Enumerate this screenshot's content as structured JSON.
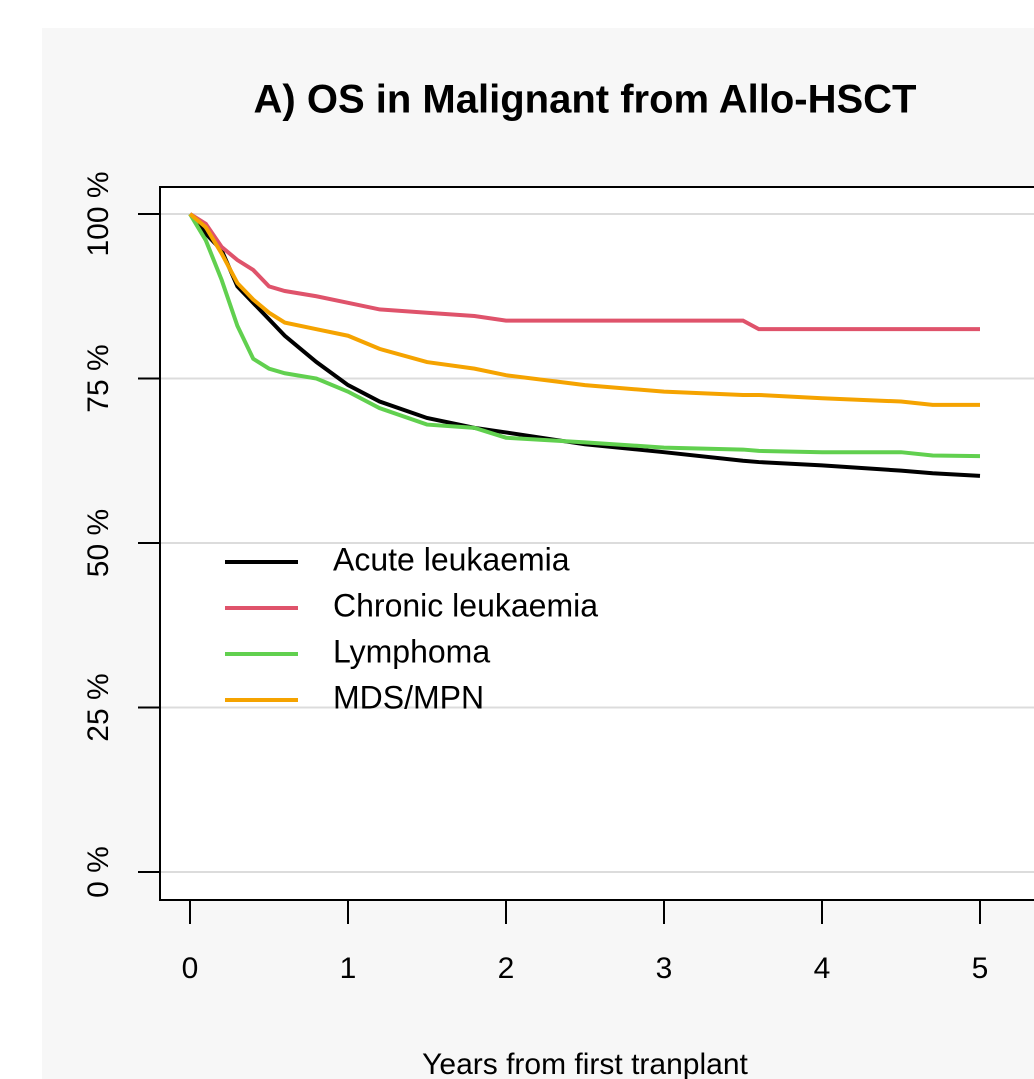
{
  "chart_data": {
    "type": "line",
    "title": "A) OS in Malignant from Allo-HSCT",
    "x_label": "Years from first tranplant",
    "x": [
      0,
      0.1,
      0.2,
      0.3,
      0.4,
      0.5,
      0.6,
      0.8,
      1.0,
      1.2,
      1.5,
      1.8,
      2.0,
      2.5,
      3.0,
      3.5,
      3.6,
      4.0,
      4.5,
      4.7,
      5.0
    ],
    "series": [
      {
        "name": "Acute leukaemia",
        "color": "#000000",
        "values": [
          100,
          97,
          94.5,
          89,
          86.5,
          84,
          81.5,
          77.5,
          74,
          71.5,
          69,
          67.5,
          66.8,
          65,
          63.8,
          62.5,
          62.3,
          61.8,
          61,
          60.6,
          60.2
        ]
      },
      {
        "name": "Chronic leukaemia",
        "color": "#df536b",
        "values": [
          100,
          98.5,
          95,
          93,
          91.5,
          89,
          88.3,
          87.5,
          86.5,
          85.5,
          85,
          84.5,
          83.8,
          83.8,
          83.8,
          83.8,
          82.5,
          82.5,
          82.5,
          82.5,
          82.5
        ]
      },
      {
        "name": "Lymphoma",
        "color": "#61d04f",
        "values": [
          100,
          96,
          90,
          83,
          78,
          76.5,
          75.8,
          75,
          73,
          70.5,
          68,
          67.5,
          66,
          65.3,
          64.5,
          64.2,
          64,
          63.8,
          63.8,
          63.3,
          63.2
        ]
      },
      {
        "name": "MDS/MPN",
        "color": "#f5a300",
        "values": [
          100,
          98,
          94,
          89.5,
          87,
          85,
          83.5,
          82.5,
          81.5,
          79.5,
          77.5,
          76.5,
          75.5,
          74,
          73,
          72.5,
          72.5,
          72,
          71.5,
          71,
          71
        ]
      }
    ],
    "xlim": [
      0,
      5
    ],
    "xticks": [
      0,
      1,
      2,
      3,
      4,
      5
    ],
    "ylim": [
      0,
      100
    ],
    "yticks": [
      {
        "value": 0,
        "label": "0 %"
      },
      {
        "value": 25,
        "label": "25 %"
      },
      {
        "value": 50,
        "label": "50 %"
      },
      {
        "value": 75,
        "label": "75 %"
      },
      {
        "value": 100,
        "label": "100 %"
      }
    ],
    "grid": true,
    "legend": "left"
  }
}
